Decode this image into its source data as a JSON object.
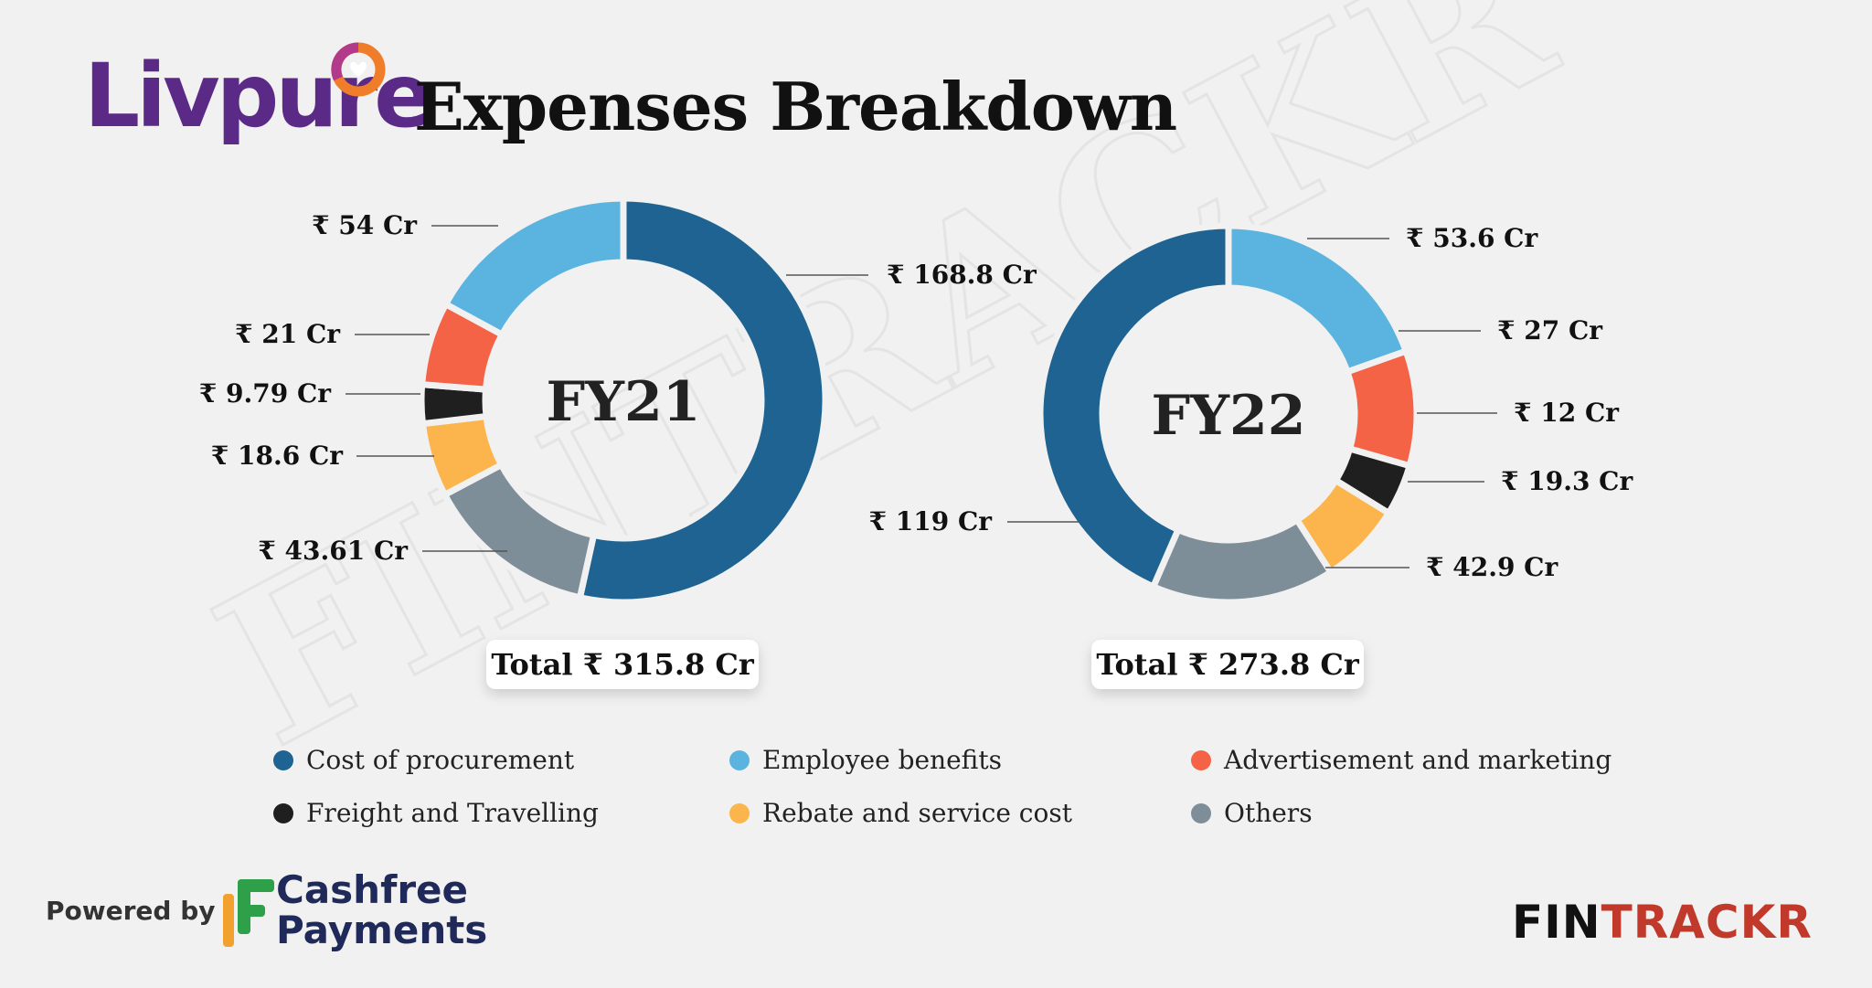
{
  "brand": {
    "logo_text": "Livpure",
    "logo_icon": "heart-ring-icon"
  },
  "title": "Expenses Breakdown",
  "colors": {
    "Cost of procurement": "#1e6391",
    "Employee benefits": "#5ab4df",
    "Advertisement and marketing": "#f56347",
    "Freight and Travelling": "#1f1f1f",
    "Rebate and service cost": "#fcb54c",
    "Others": "#7e8e98"
  },
  "legend": [
    "Cost of procurement",
    "Employee benefits",
    "Advertisement and marketing",
    "Freight and Travelling",
    "Rebate and service cost",
    "Others"
  ],
  "chart_data": [
    {
      "type": "pie",
      "center_label": "FY21",
      "total_label": "Total ₹ 315.8 Cr",
      "slices": [
        {
          "category": "Cost of procurement",
          "value": 168.8,
          "label": "₹ 168.8 Cr"
        },
        {
          "category": "Others",
          "value": 43.61,
          "label": "₹ 43.61 Cr"
        },
        {
          "category": "Rebate and service cost",
          "value": 18.6,
          "label": "₹ 18.6 Cr"
        },
        {
          "category": "Freight and Travelling",
          "value": 9.79,
          "label": "₹ 9.79 Cr"
        },
        {
          "category": "Advertisement and marketing",
          "value": 21,
          "label": "₹ 21 Cr"
        },
        {
          "category": "Employee benefits",
          "value": 54,
          "label": "₹ 54 Cr"
        }
      ]
    },
    {
      "type": "pie",
      "center_label": "FY22",
      "total_label": "Total ₹ 273.8 Cr",
      "slices": [
        {
          "category": "Employee benefits",
          "value": 53.6,
          "label": "₹ 53.6 Cr"
        },
        {
          "category": "Advertisement and marketing",
          "value": 27,
          "label": "₹ 27 Cr"
        },
        {
          "category": "Freight and Travelling",
          "value": 12,
          "label": "₹ 12 Cr"
        },
        {
          "category": "Rebate and service cost",
          "value": 19.3,
          "label": "₹ 19.3 Cr"
        },
        {
          "category": "Others",
          "value": 42.9,
          "label": "₹ 42.9 Cr"
        },
        {
          "category": "Cost of procurement",
          "value": 119,
          "label": "₹ 119 Cr"
        }
      ]
    }
  ],
  "footer": {
    "powered_by": "Powered by",
    "cashfree_line1": "Cashfree",
    "cashfree_line2": "Payments",
    "fintrackr_a": "FIN",
    "fintrackr_b": "TRACKR"
  },
  "watermark": "FINTRACKR"
}
